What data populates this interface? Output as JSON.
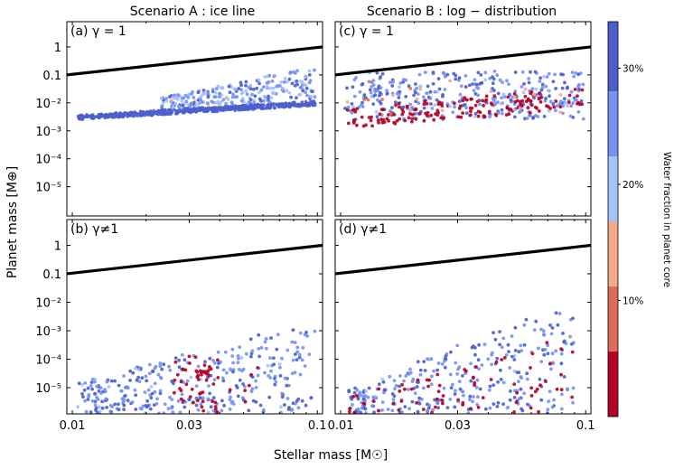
{
  "figure": {
    "xlabel": "Stellar mass [M☉]",
    "ylabel": "Planet mass [M⊕]",
    "col_titles": [
      "Scenario A :  ice line",
      "Scenario B :  log − distribution"
    ]
  },
  "colorbar": {
    "label": "Water fraction in planet core",
    "ticks": [
      "30%",
      "20%",
      "10%"
    ],
    "tick_values": [
      30,
      20,
      10
    ],
    "range": [
      0,
      34
    ],
    "bands": [
      "#b40426",
      "#dd6b5b",
      "#f4a98c",
      "#a3c2fe",
      "#7592f0",
      "#4d5fcd"
    ],
    "band_edges": [
      0,
      5.6,
      11.2,
      16.8,
      22.4,
      28,
      34
    ]
  },
  "chart_data": {
    "type": "scatter",
    "xscale": "log",
    "yscale": "log",
    "xlim": [
      0.0095,
      0.105
    ],
    "xticks": [
      0.01,
      0.03,
      0.1
    ],
    "xtick_labels": [
      "0.01",
      "0.03",
      "0.1"
    ],
    "yticks": [
      1,
      0.1,
      0.01,
      0.001,
      0.0001,
      1e-05
    ],
    "ytick_labels": [
      "1",
      "0.1",
      "10⁻²",
      "10⁻³",
      "10⁻⁴",
      "10⁻⁵"
    ],
    "threshold_line": {
      "x": [
        0.0095,
        0.105
      ],
      "y": [
        0.1,
        1.0
      ]
    },
    "panels": [
      {
        "id": "a",
        "label": "(a) γ = 1",
        "ylim": [
          9e-07,
          8
        ],
        "scenario": "A",
        "pattern": "icelineA"
      },
      {
        "id": "b",
        "label": "(b) γ≠1",
        "ylim": [
          1.2e-06,
          8
        ],
        "scenario": "A",
        "pattern": "scatterA"
      },
      {
        "id": "c",
        "label": "(c) γ = 1",
        "ylim": [
          9e-07,
          8
        ],
        "scenario": "B",
        "pattern": "logB"
      },
      {
        "id": "d",
        "label": "(d) γ≠1",
        "ylim": [
          1.2e-06,
          8
        ],
        "scenario": "B",
        "pattern": "scatterB"
      }
    ]
  }
}
